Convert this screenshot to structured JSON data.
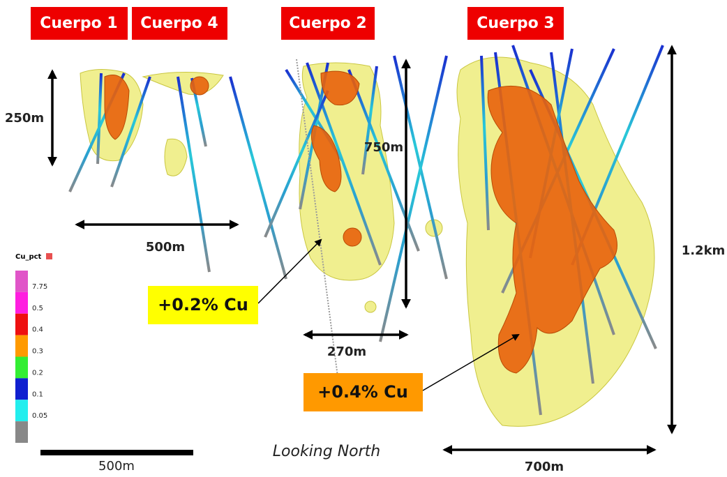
{
  "bodies": [
    "Cuerpo 1",
    "Cuerpo 4",
    "Cuerpo 2",
    "Cuerpo 3"
  ],
  "dimensions": {
    "body1_height": "250m",
    "body1_width": "500m",
    "body2_height": "750m",
    "body2_width": "270m",
    "body3_height": "1.2km",
    "body3_width": "700m"
  },
  "annotations": {
    "low_grade": "+0.2% Cu",
    "high_grade": "+0.4% Cu"
  },
  "legend": {
    "title": "Cu_pct",
    "labels": [
      "7.75",
      "0.5",
      "0.4",
      "0.3",
      "0.2",
      "0.1",
      "0.05"
    ],
    "colors": [
      "#e055c8",
      "#ff1ee0",
      "#ee1010",
      "#ff9a00",
      "#33ee33",
      "#1020d0",
      "#22eeee",
      "#888888"
    ]
  },
  "scale_bar": "500m",
  "view": "Looking North"
}
